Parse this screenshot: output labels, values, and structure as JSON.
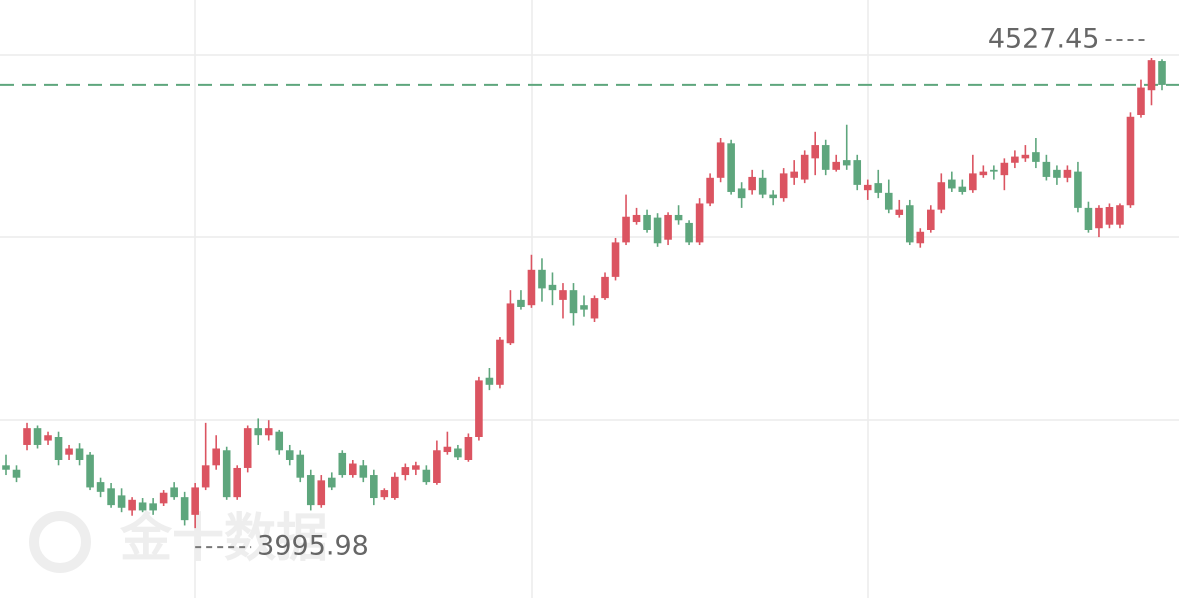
{
  "chart_data": {
    "type": "candlestick",
    "watermark": "金十数据",
    "up_color": "#db5461",
    "down_color": "#5ea67d",
    "ylim": [
      3917,
      4593
    ],
    "annotations": [
      4527.45,
      3995.98
    ],
    "open": [
      4067,
      4062,
      4090,
      4109,
      4095,
      4099,
      4079,
      4086,
      4079,
      4048,
      4041,
      4033,
      4016,
      4025,
      4024,
      4024,
      4042,
      4031,
      4011,
      4042,
      4067,
      4084,
      4031,
      4064,
      4109,
      4101,
      4105,
      4084,
      4079,
      4056,
      4022,
      4053,
      4081,
      4056,
      4067,
      4056,
      4031,
      4030,
      4056,
      4062,
      4062,
      4047,
      4082,
      4086,
      4073,
      4099,
      4166,
      4158,
      4205,
      4254,
      4248,
      4288,
      4271,
      4254,
      4265,
      4248,
      4233,
      4256,
      4280,
      4319,
      4342,
      4350,
      4347,
      4322,
      4350,
      4341,
      4319,
      4363,
      4392,
      4431,
      4380,
      4378,
      4392,
      4373,
      4369,
      4392,
      4390,
      4414,
      4429,
      4401,
      4412,
      4412,
      4378,
      4386,
      4375,
      4350,
      4361,
      4318,
      4333,
      4356,
      4390,
      4382,
      4378,
      4395,
      4401,
      4395,
      4409,
      4414,
      4421,
      4410,
      4401,
      4392,
      4399,
      4358,
      4335,
      4339,
      4339,
      4361,
      4463,
      4491,
      4524
    ],
    "high": [
      4079,
      4067,
      4115,
      4112,
      4105,
      4105,
      4090,
      4092,
      4082,
      4053,
      4047,
      4041,
      4031,
      4030,
      4030,
      4039,
      4048,
      4037,
      4047,
      4115,
      4101,
      4088,
      4067,
      4112,
      4120,
      4118,
      4107,
      4090,
      4084,
      4062,
      4056,
      4059,
      4084,
      4073,
      4073,
      4062,
      4041,
      4059,
      4069,
      4071,
      4067,
      4095,
      4105,
      4090,
      4103,
      4167,
      4177,
      4212,
      4265,
      4265,
      4305,
      4301,
      4285,
      4273,
      4273,
      4259,
      4259,
      4285,
      4324,
      4373,
      4358,
      4356,
      4352,
      4353,
      4361,
      4344,
      4369,
      4397,
      4437,
      4435,
      4387,
      4401,
      4401,
      4378,
      4403,
      4412,
      4423,
      4444,
      4435,
      4418,
      4452,
      4418,
      4390,
      4401,
      4390,
      4367,
      4367,
      4335,
      4361,
      4397,
      4399,
      4390,
      4418,
      4406,
      4406,
      4414,
      4423,
      4429,
      4437,
      4418,
      4406,
      4406,
      4410,
      4365,
      4361,
      4363,
      4363,
      4466,
      4503,
      4527.45,
      4526
    ],
    "low": [
      4056,
      4048,
      4084,
      4086,
      4090,
      4067,
      4073,
      4067,
      4039,
      4031,
      4019,
      4014,
      4010,
      4014,
      4011,
      4021,
      4028,
      3999,
      3995.98,
      4039,
      4062,
      4028,
      4028,
      4059,
      4090,
      4095,
      4079,
      4067,
      4048,
      4016,
      4019,
      4039,
      4053,
      4053,
      4048,
      4022,
      4028,
      4028,
      4050,
      4056,
      4045,
      4045,
      4079,
      4073,
      4071,
      4095,
      4152,
      4154,
      4203,
      4243,
      4245,
      4252,
      4248,
      4233,
      4225,
      4235,
      4229,
      4254,
      4276,
      4316,
      4339,
      4330,
      4314,
      4316,
      4339,
      4316,
      4316,
      4360,
      4387,
      4373,
      4358,
      4373,
      4369,
      4361,
      4365,
      4384,
      4386,
      4395,
      4395,
      4399,
      4401,
      4378,
      4367,
      4369,
      4352,
      4347,
      4316,
      4313,
      4330,
      4352,
      4376,
      4373,
      4375,
      4392,
      4390,
      4378,
      4403,
      4410,
      4403,
      4389,
      4384,
      4387,
      4353,
      4330,
      4325,
      4335,
      4335,
      4358,
      4460,
      4474,
      4491
    ],
    "close": [
      4062,
      4053,
      4109,
      4090,
      4101,
      4073,
      4086,
      4073,
      4042,
      4037,
      4022,
      4019,
      4028,
      4016,
      4016,
      4036,
      4031,
      4005,
      4042,
      4067,
      4086,
      4031,
      4064,
      4109,
      4101,
      4109,
      4084,
      4073,
      4053,
      4022,
      4050,
      4042,
      4056,
      4069,
      4053,
      4030,
      4039,
      4054,
      4065,
      4067,
      4048,
      4084,
      4088,
      4076,
      4099,
      4163,
      4158,
      4209,
      4250,
      4246,
      4288,
      4267,
      4265,
      4265,
      4239,
      4243,
      4256,
      4280,
      4319,
      4348,
      4350,
      4333,
      4318,
      4350,
      4344,
      4319,
      4363,
      4392,
      4432,
      4376,
      4369,
      4393,
      4373,
      4369,
      4397,
      4399,
      4418,
      4429,
      4401,
      4410,
      4406,
      4384,
      4384,
      4375,
      4356,
      4356,
      4319,
      4331,
      4356,
      4387,
      4380,
      4376,
      4397,
      4399,
      4399,
      4409,
      4416,
      4418,
      4410,
      4393,
      4392,
      4401,
      4358,
      4333,
      4358,
      4359,
      4361,
      4461,
      4494,
      4525,
      4497
    ]
  }
}
